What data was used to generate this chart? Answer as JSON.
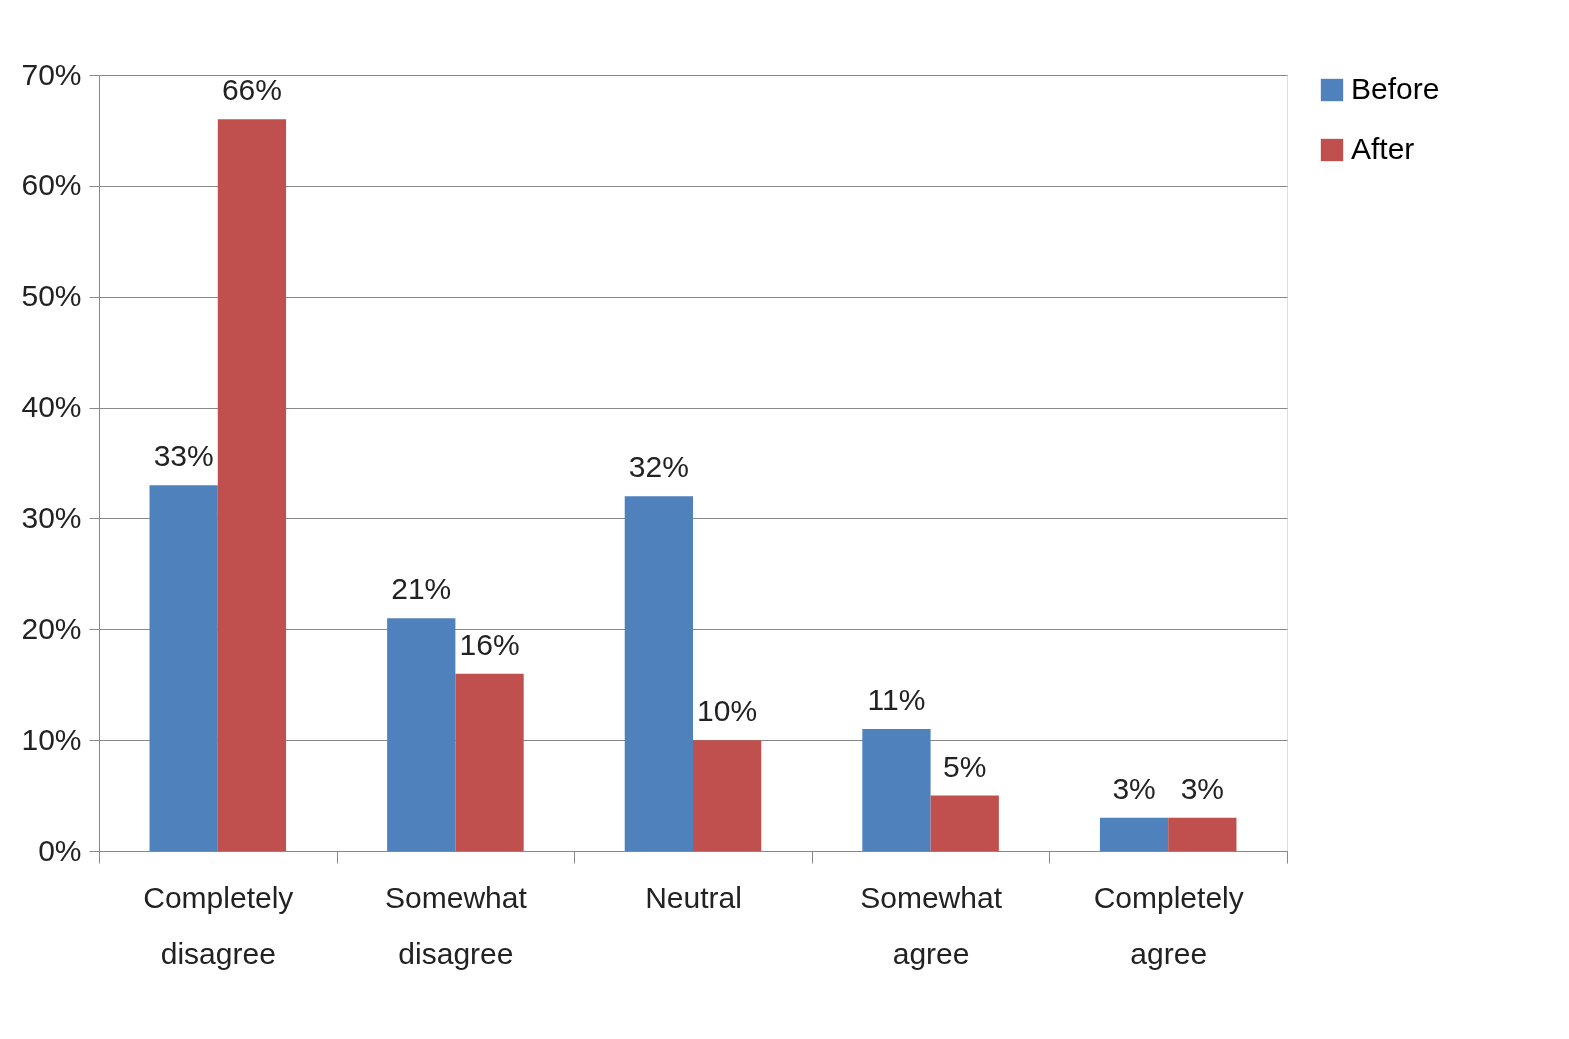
{
  "chart_data": {
    "type": "bar",
    "categories": [
      "Completely disagree",
      "Somewhat disagree",
      "Neutral",
      "Somewhat agree",
      "Completely agree"
    ],
    "series": [
      {
        "name": "Before",
        "color": "#4f81bd",
        "values": [
          33,
          21,
          32,
          11,
          3
        ],
        "value_labels": [
          "33%",
          "21%",
          "32%",
          "11%",
          "3%"
        ]
      },
      {
        "name": "After",
        "color": "#c0504d",
        "values": [
          66,
          16,
          10,
          5,
          3
        ],
        "value_labels": [
          "66%",
          "16%",
          "10%",
          "5%",
          "3%"
        ]
      }
    ],
    "ylim": [
      0,
      70
    ],
    "yticks": [
      {
        "value": 0,
        "label": "0%"
      },
      {
        "value": 10,
        "label": "10%"
      },
      {
        "value": 20,
        "label": "20%"
      },
      {
        "value": 30,
        "label": "30%"
      },
      {
        "value": 40,
        "label": "40%"
      },
      {
        "value": 50,
        "label": "50%"
      },
      {
        "value": 60,
        "label": "60%"
      },
      {
        "value": 70,
        "label": "70%"
      }
    ],
    "grid": "y",
    "legend": "right"
  }
}
